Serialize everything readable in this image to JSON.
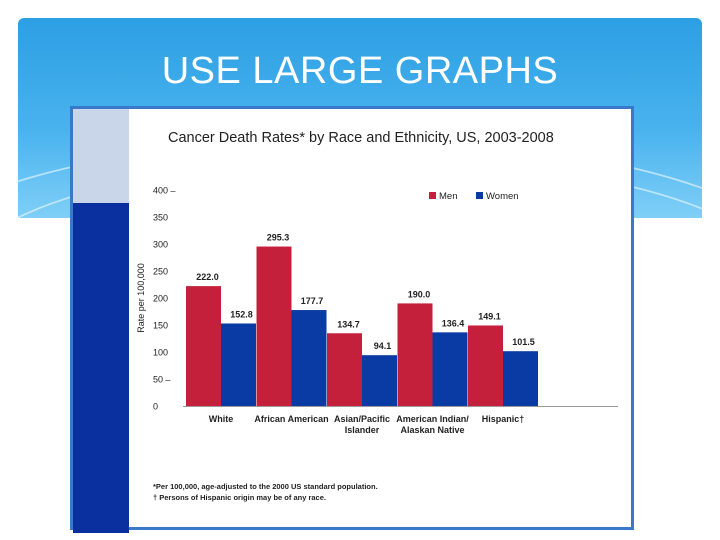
{
  "slide": {
    "title": "USE LARGE GRAPHS"
  },
  "chart_data": {
    "type": "bar",
    "title": "Cancer Death Rates* by Race and Ethnicity, US, 2003-2008",
    "ylabel": "Rate per 100,000",
    "xlabel": "",
    "ylim": [
      0,
      400
    ],
    "yticks": [
      {
        "value": 0,
        "label": "0"
      },
      {
        "value": 50,
        "label": "50 –"
      },
      {
        "value": 100,
        "label": "100"
      },
      {
        "value": 150,
        "label": "150"
      },
      {
        "value": 200,
        "label": "200"
      },
      {
        "value": 250,
        "label": "250"
      },
      {
        "value": 300,
        "label": "300"
      },
      {
        "value": 350,
        "label": "350"
      },
      {
        "value": 400,
        "label": "400 –"
      }
    ],
    "categories": [
      [
        "White"
      ],
      [
        "African American"
      ],
      [
        "Asian/Pacific",
        "Islander"
      ],
      [
        "American Indian/",
        "Alaskan Native"
      ],
      [
        "Hispanic†"
      ]
    ],
    "series": [
      {
        "name": "Men",
        "color": "#c5203b",
        "values": [
          222.0,
          295.3,
          134.7,
          190.0,
          149.1
        ],
        "labels": [
          "222.0",
          "295.3",
          "134.7",
          "190.0",
          "149.1"
        ]
      },
      {
        "name": "Women",
        "color": "#0a3aa3",
        "values": [
          152.8,
          177.7,
          94.1,
          136.4,
          101.5
        ],
        "labels": [
          "152.8",
          "177.7",
          "94.1",
          "136.4",
          "101.5"
        ]
      }
    ],
    "legend_position": "top-right",
    "grid": false
  },
  "footnotes": {
    "note1": "*Per 100,000, age-adjusted to the 2000 US standard population.",
    "note2": "† Persons of Hispanic origin may be of any race."
  }
}
